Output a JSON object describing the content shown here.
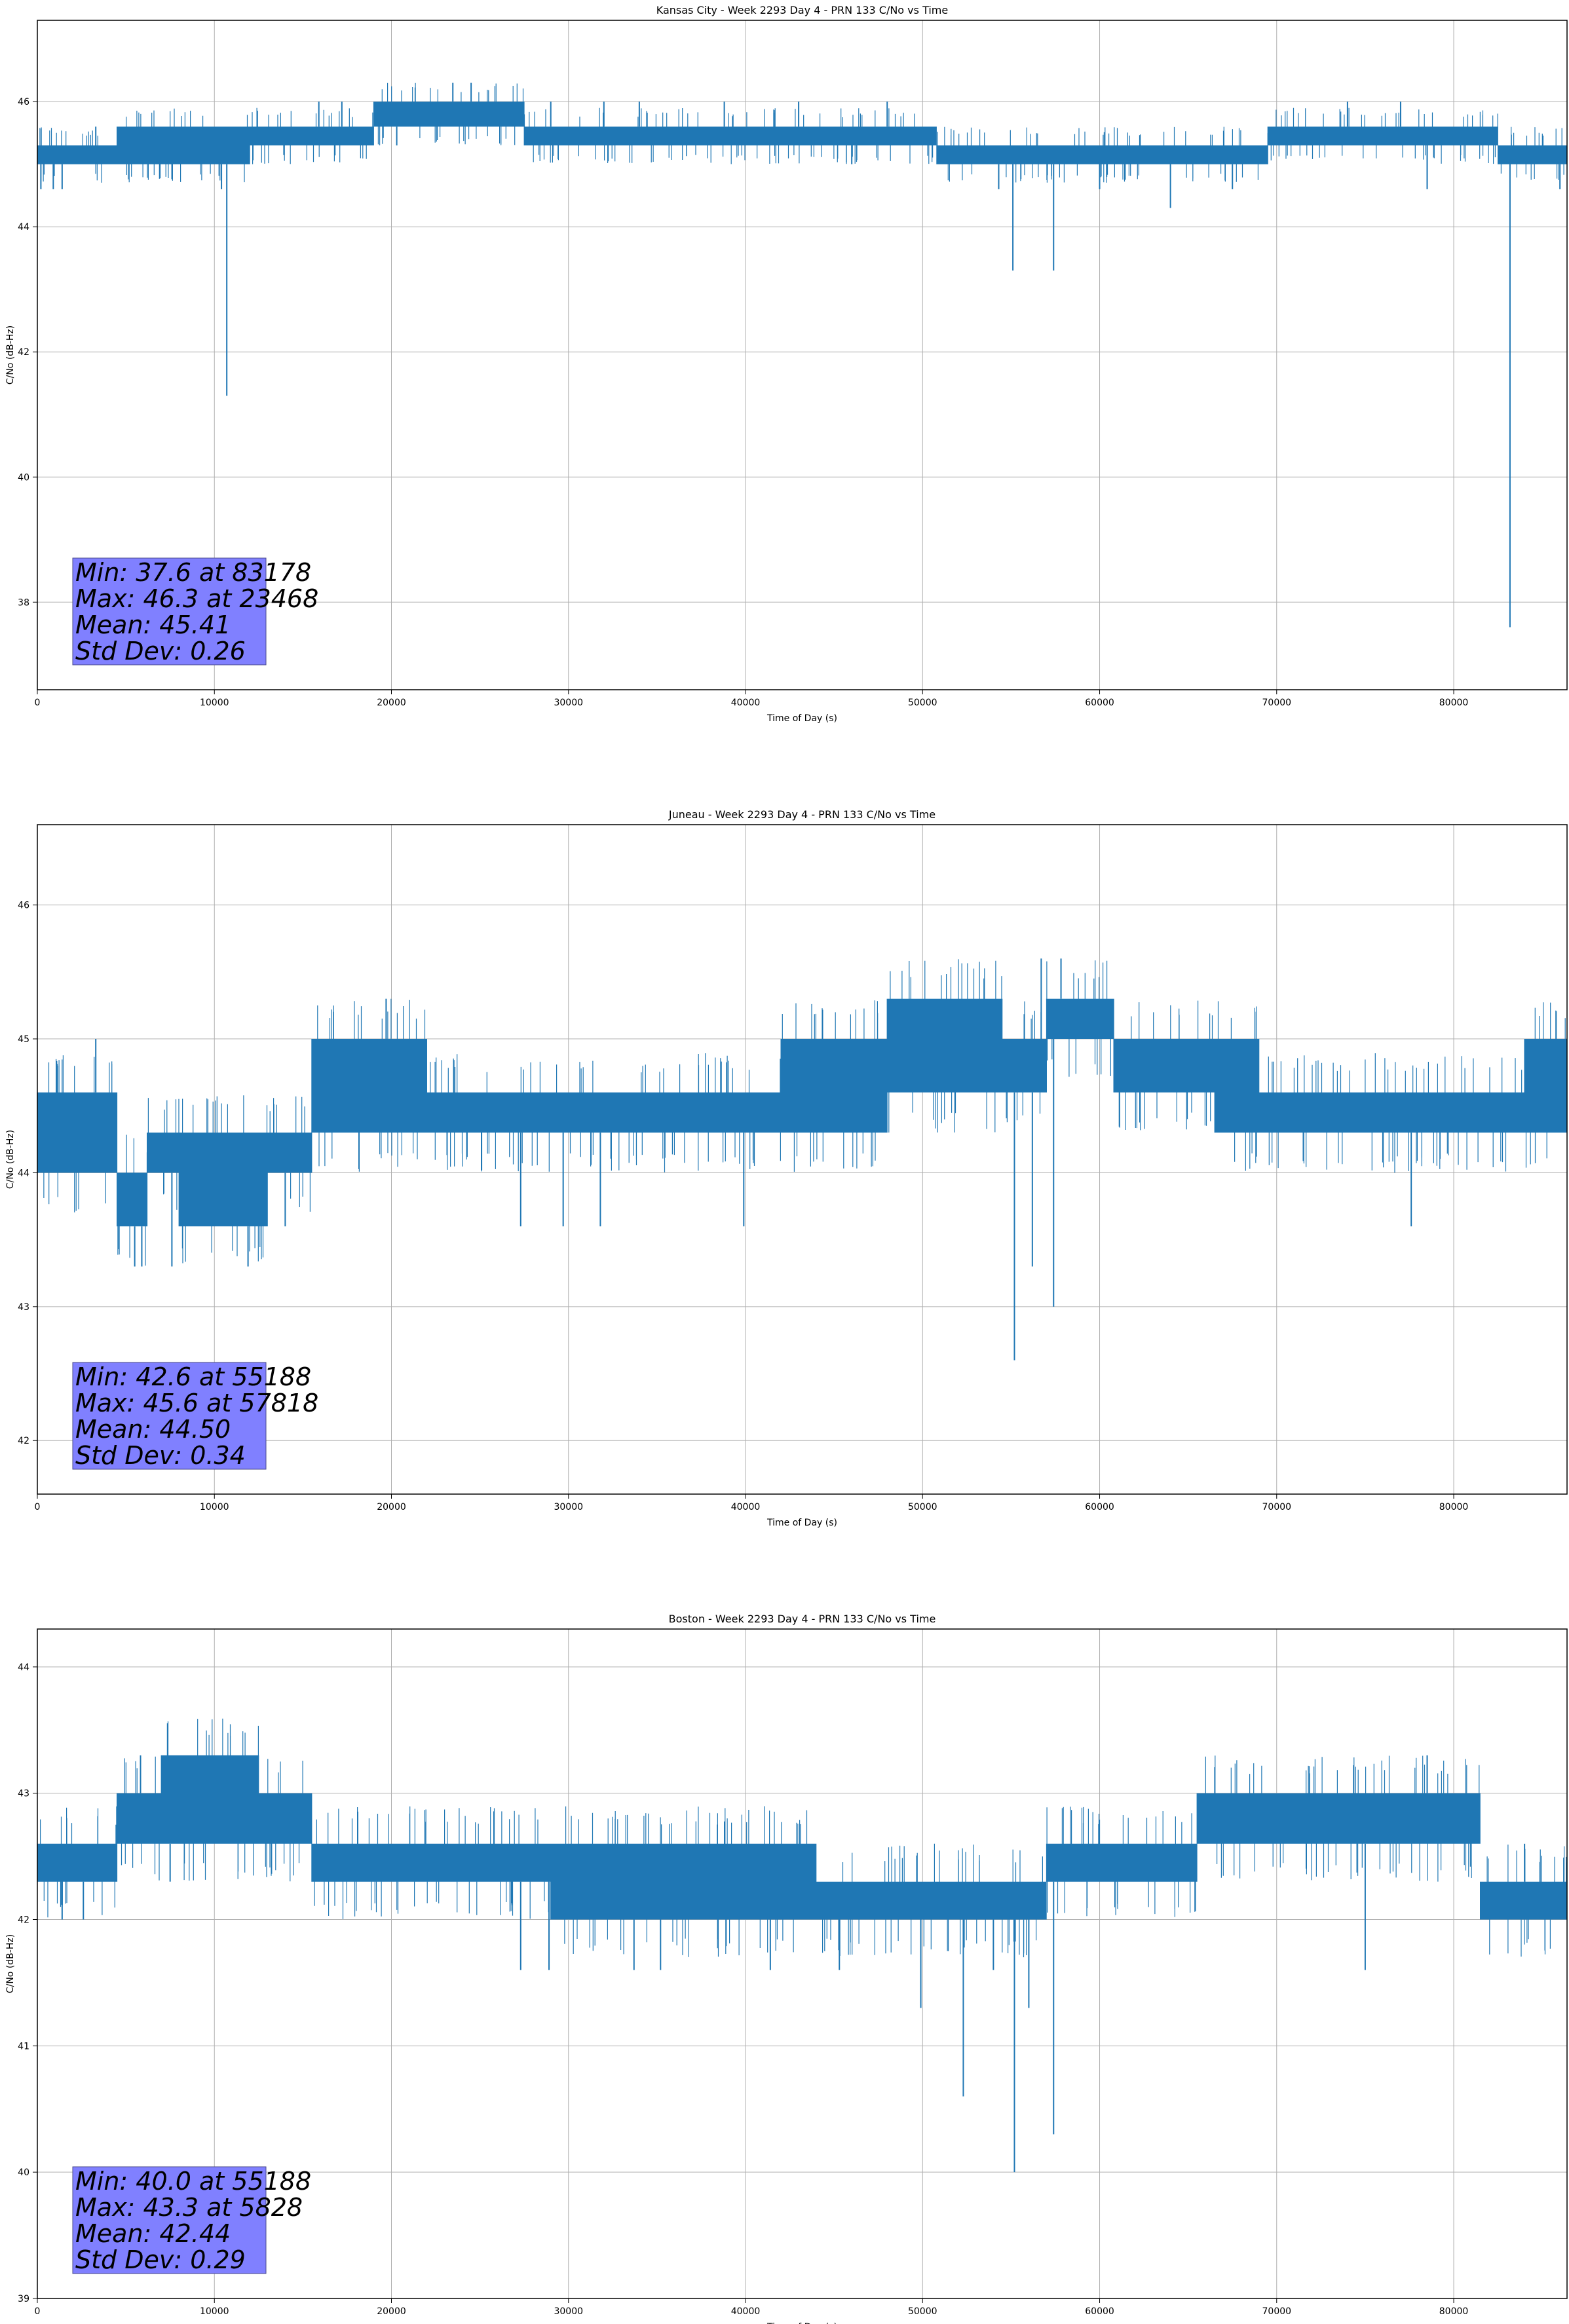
{
  "chart_data": [
    {
      "type": "line",
      "title": "Kansas City - Week 2293 Day 4 - PRN 133 C/No vs Time",
      "xlabel": "Time of Day (s)",
      "ylabel": "C/No (dB-Hz)",
      "xlim": [
        0,
        86400
      ],
      "ylim": [
        36.6,
        47.3
      ],
      "xticks": [
        0,
        10000,
        20000,
        30000,
        40000,
        50000,
        60000,
        70000,
        80000
      ],
      "yticks": [
        38,
        40,
        42,
        44,
        46
      ],
      "grid": true,
      "color": "#1f77b4",
      "stats_box_color": "#8080ff",
      "stats": [
        "Min: 37.6 at 83178",
        "Max: 46.3 at 23468",
        "Mean: 45.41",
        "Std Dev: 0.26"
      ],
      "band_segments": [
        {
          "x": [
            0,
            4500
          ],
          "lo": 45.0,
          "hi": 45.3
        },
        {
          "x": [
            4500,
            12000
          ],
          "lo": 45.0,
          "hi": 45.6
        },
        {
          "x": [
            12000,
            19000
          ],
          "lo": 45.3,
          "hi": 45.6
        },
        {
          "x": [
            19000,
            27500
          ],
          "lo": 45.6,
          "hi": 46.0
        },
        {
          "x": [
            27500,
            50800
          ],
          "lo": 45.3,
          "hi": 45.6
        },
        {
          "x": [
            50800,
            69500
          ],
          "lo": 45.0,
          "hi": 45.3
        },
        {
          "x": [
            69500,
            82500
          ],
          "lo": 45.3,
          "hi": 45.6
        },
        {
          "x": [
            82500,
            86400
          ],
          "lo": 45.0,
          "hi": 45.3
        }
      ],
      "spikes": [
        {
          "x": 200,
          "y": 44.6
        },
        {
          "x": 900,
          "y": 44.6
        },
        {
          "x": 1400,
          "y": 44.6
        },
        {
          "x": 3300,
          "y": 45.6
        },
        {
          "x": 10700,
          "y": 41.3
        },
        {
          "x": 10400,
          "y": 44.6
        },
        {
          "x": 15900,
          "y": 46.0
        },
        {
          "x": 17200,
          "y": 46.0
        },
        {
          "x": 20300,
          "y": 45.3
        },
        {
          "x": 23468,
          "y": 46.3
        },
        {
          "x": 24500,
          "y": 46.3
        },
        {
          "x": 29000,
          "y": 46.0
        },
        {
          "x": 32000,
          "y": 46.0
        },
        {
          "x": 34000,
          "y": 46.0
        },
        {
          "x": 38800,
          "y": 46.0
        },
        {
          "x": 43000,
          "y": 46.0
        },
        {
          "x": 46000,
          "y": 45.0
        },
        {
          "x": 48000,
          "y": 46.0
        },
        {
          "x": 54300,
          "y": 44.6
        },
        {
          "x": 55100,
          "y": 43.3
        },
        {
          "x": 57400,
          "y": 43.3
        },
        {
          "x": 60000,
          "y": 44.6
        },
        {
          "x": 64000,
          "y": 44.3
        },
        {
          "x": 67500,
          "y": 44.6
        },
        {
          "x": 74000,
          "y": 46.0
        },
        {
          "x": 77000,
          "y": 46.0
        },
        {
          "x": 78500,
          "y": 44.6
        },
        {
          "x": 83178,
          "y": 37.6
        },
        {
          "x": 86000,
          "y": 44.6
        }
      ],
      "noise_span": 0.4,
      "seed": 11
    },
    {
      "type": "line",
      "title": "Juneau - Week 2293 Day 4 - PRN 133 C/No vs Time",
      "xlabel": "Time of Day (s)",
      "ylabel": "C/No (dB-Hz)",
      "xlim": [
        0,
        86400
      ],
      "ylim": [
        41.6,
        46.6
      ],
      "xticks": [
        0,
        10000,
        20000,
        30000,
        40000,
        50000,
        60000,
        70000,
        80000
      ],
      "yticks": [
        42,
        43,
        44,
        45,
        46
      ],
      "grid": true,
      "color": "#1f77b4",
      "stats_box_color": "#8080ff",
      "stats": [
        "Min: 42.6 at 55188",
        "Max: 45.6 at 57818",
        "Mean: 44.50",
        "Std Dev: 0.34"
      ],
      "band_segments": [
        {
          "x": [
            0,
            4500
          ],
          "lo": 44.0,
          "hi": 44.6
        },
        {
          "x": [
            4500,
            6200
          ],
          "lo": 43.6,
          "hi": 44.0
        },
        {
          "x": [
            6200,
            8000
          ],
          "lo": 44.0,
          "hi": 44.3
        },
        {
          "x": [
            8000,
            13000
          ],
          "lo": 43.6,
          "hi": 44.3
        },
        {
          "x": [
            13000,
            15500
          ],
          "lo": 44.0,
          "hi": 44.3
        },
        {
          "x": [
            15500,
            22000
          ],
          "lo": 44.3,
          "hi": 45.0
        },
        {
          "x": [
            22000,
            42000
          ],
          "lo": 44.3,
          "hi": 44.6
        },
        {
          "x": [
            42000,
            48000
          ],
          "lo": 44.3,
          "hi": 45.0
        },
        {
          "x": [
            48000,
            54500
          ],
          "lo": 44.6,
          "hi": 45.3
        },
        {
          "x": [
            54500,
            57000
          ],
          "lo": 44.6,
          "hi": 45.0
        },
        {
          "x": [
            57000,
            60800
          ],
          "lo": 45.0,
          "hi": 45.3
        },
        {
          "x": [
            60800,
            66500
          ],
          "lo": 44.6,
          "hi": 45.0
        },
        {
          "x": [
            66500,
            69000
          ],
          "lo": 44.3,
          "hi": 45.0
        },
        {
          "x": [
            69000,
            84000
          ],
          "lo": 44.3,
          "hi": 44.6
        },
        {
          "x": [
            84000,
            86400
          ],
          "lo": 44.3,
          "hi": 45.0
        }
      ],
      "spikes": [
        {
          "x": 3300,
          "y": 45.0
        },
        {
          "x": 5500,
          "y": 43.3
        },
        {
          "x": 5900,
          "y": 43.3
        },
        {
          "x": 7600,
          "y": 43.3
        },
        {
          "x": 11900,
          "y": 43.3
        },
        {
          "x": 14000,
          "y": 43.6
        },
        {
          "x": 19700,
          "y": 45.3
        },
        {
          "x": 27300,
          "y": 43.6
        },
        {
          "x": 29700,
          "y": 43.6
        },
        {
          "x": 31800,
          "y": 43.6
        },
        {
          "x": 39900,
          "y": 43.6
        },
        {
          "x": 55188,
          "y": 42.6
        },
        {
          "x": 56200,
          "y": 43.3
        },
        {
          "x": 57400,
          "y": 43.0
        },
        {
          "x": 56700,
          "y": 45.6
        },
        {
          "x": 57818,
          "y": 45.6
        },
        {
          "x": 77600,
          "y": 43.6
        }
      ],
      "noise_span": 0.4,
      "seed": 23
    },
    {
      "type": "line",
      "title": "Boston - Week 2293 Day 4 - PRN 133 C/No vs Time",
      "xlabel": "Time of Day (s)",
      "ylabel": "C/No (dB-Hz)",
      "xlim": [
        0,
        86400
      ],
      "ylim": [
        39.0,
        44.3
      ],
      "xticks": [
        0,
        10000,
        20000,
        30000,
        40000,
        50000,
        60000,
        70000,
        80000
      ],
      "yticks": [
        39,
        40,
        41,
        42,
        43,
        44
      ],
      "grid": true,
      "color": "#1f77b4",
      "stats_box_color": "#8080ff",
      "stats": [
        "Min: 40.0 at 55188",
        "Max: 43.3 at 5828",
        "Mean: 42.44",
        "Std Dev: 0.29"
      ],
      "band_segments": [
        {
          "x": [
            0,
            4500
          ],
          "lo": 42.3,
          "hi": 42.6
        },
        {
          "x": [
            4500,
            7000
          ],
          "lo": 42.6,
          "hi": 43.0
        },
        {
          "x": [
            7000,
            12500
          ],
          "lo": 42.6,
          "hi": 43.3
        },
        {
          "x": [
            12500,
            15500
          ],
          "lo": 42.6,
          "hi": 43.0
        },
        {
          "x": [
            15500,
            29000
          ],
          "lo": 42.3,
          "hi": 42.6
        },
        {
          "x": [
            29000,
            44000
          ],
          "lo": 42.0,
          "hi": 42.6
        },
        {
          "x": [
            44000,
            57000
          ],
          "lo": 42.0,
          "hi": 42.3
        },
        {
          "x": [
            57000,
            65500
          ],
          "lo": 42.3,
          "hi": 42.6
        },
        {
          "x": [
            65500,
            81500
          ],
          "lo": 42.6,
          "hi": 43.0
        },
        {
          "x": [
            81500,
            86400
          ],
          "lo": 42.0,
          "hi": 42.3
        }
      ],
      "spikes": [
        {
          "x": 1400,
          "y": 42.0
        },
        {
          "x": 2600,
          "y": 42.0
        },
        {
          "x": 5828,
          "y": 43.3
        },
        {
          "x": 7500,
          "y": 42.3
        },
        {
          "x": 27300,
          "y": 41.6
        },
        {
          "x": 28900,
          "y": 41.6
        },
        {
          "x": 33700,
          "y": 41.6
        },
        {
          "x": 35200,
          "y": 41.6
        },
        {
          "x": 41400,
          "y": 41.6
        },
        {
          "x": 45300,
          "y": 41.6
        },
        {
          "x": 49900,
          "y": 41.3
        },
        {
          "x": 52300,
          "y": 40.6
        },
        {
          "x": 54000,
          "y": 41.6
        },
        {
          "x": 55188,
          "y": 40.0
        },
        {
          "x": 57400,
          "y": 40.3
        },
        {
          "x": 56000,
          "y": 41.3
        },
        {
          "x": 75000,
          "y": 41.6
        },
        {
          "x": 78500,
          "y": 43.3
        },
        {
          "x": 84000,
          "y": 42.6
        }
      ],
      "noise_span": 0.4,
      "seed": 37
    }
  ]
}
